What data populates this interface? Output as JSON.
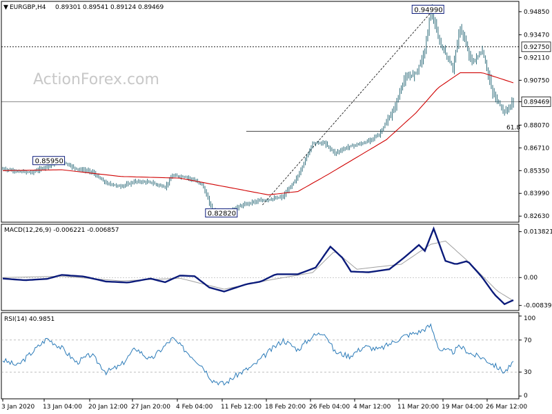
{
  "header": {
    "symbol": "EURGBP,H4",
    "open": "0.89301",
    "high": "0.89541",
    "low": "0.89124",
    "close": "0.89469",
    "watermark": "ActionForex.com"
  },
  "colors": {
    "candle": "#1a5e6e",
    "sma": "#d00000",
    "macd": "#0a1a7a",
    "signal": "#a0a0a0",
    "rsi": "#2a7ab8",
    "level": "#000000",
    "axis": "#000000",
    "label_border": "#0a1a7a"
  },
  "chart_data": [
    {
      "panel": "price",
      "type": "candlestick",
      "symbol": "EURGBP",
      "timeframe": "H4",
      "ohlc_last": {
        "open": 0.89301,
        "high": 0.89541,
        "low": 0.89124,
        "close": 0.89469
      },
      "ylim": [
        0.8235,
        0.953
      ],
      "y_ticks": [
        "0.94850",
        "0.93470",
        "0.92110",
        "0.90750",
        "0.89469",
        "0.88070",
        "0.86710",
        "0.85350",
        "0.83990",
        "0.82630"
      ],
      "x_ticks": [
        "3 Jan 2020",
        "13 Jan 04:00",
        "20 Jan 12:00",
        "27 Jan 20:00",
        "4 Feb 04:00",
        "11 Feb 12:00",
        "18 Feb 20:00",
        "26 Feb 04:00",
        "4 Mar 12:00",
        "11 Mar 20:00",
        "19 Mar 04:00",
        "26 Mar 12:00"
      ],
      "price_path": [
        [
          0,
          0.8545
        ],
        [
          10,
          0.853
        ],
        [
          20,
          0.8525
        ],
        [
          30,
          0.856
        ],
        [
          40,
          0.859
        ],
        [
          50,
          0.8545
        ],
        [
          60,
          0.853
        ],
        [
          70,
          0.846
        ],
        [
          80,
          0.844
        ],
        [
          90,
          0.847
        ],
        [
          100,
          0.8465
        ],
        [
          110,
          0.8435
        ],
        [
          115,
          0.8505
        ],
        [
          125,
          0.8495
        ],
        [
          135,
          0.8455
        ],
        [
          142,
          0.83
        ],
        [
          150,
          0.8282
        ],
        [
          160,
          0.832
        ],
        [
          170,
          0.835
        ],
        [
          180,
          0.836
        ],
        [
          190,
          0.838
        ],
        [
          200,
          0.85
        ],
        [
          210,
          0.87
        ],
        [
          218,
          0.87
        ],
        [
          225,
          0.864
        ],
        [
          235,
          0.868
        ],
        [
          245,
          0.87
        ],
        [
          255,
          0.875
        ],
        [
          265,
          0.89
        ],
        [
          272,
          0.908
        ],
        [
          280,
          0.912
        ],
        [
          286,
          0.925
        ],
        [
          290,
          0.9499
        ],
        [
          296,
          0.93
        ],
        [
          305,
          0.915
        ],
        [
          310,
          0.939
        ],
        [
          318,
          0.918
        ],
        [
          325,
          0.925
        ],
        [
          332,
          0.9
        ],
        [
          340,
          0.888
        ],
        [
          346,
          0.8947
        ]
      ],
      "sma_path": [
        [
          0,
          0.8535
        ],
        [
          40,
          0.854
        ],
        [
          80,
          0.85
        ],
        [
          120,
          0.849
        ],
        [
          150,
          0.844
        ],
        [
          180,
          0.839
        ],
        [
          200,
          0.841
        ],
        [
          220,
          0.851
        ],
        [
          260,
          0.872
        ],
        [
          280,
          0.888
        ],
        [
          295,
          0.903
        ],
        [
          310,
          0.912
        ],
        [
          325,
          0.912
        ],
        [
          346,
          0.906
        ]
      ],
      "levels": [
        {
          "value": 0.9275,
          "style": "dotted",
          "label": "0.92750"
        },
        {
          "value": 0.89469,
          "style": "solid",
          "label": "0.89469"
        }
      ],
      "fib_level": {
        "value": 0.877,
        "label": "61.8"
      },
      "annotations": [
        {
          "text": "0.85950",
          "value": 0.8595,
          "bar": 33
        },
        {
          "text": "0.82820",
          "value": 0.8282,
          "bar": 150
        },
        {
          "text": "0.94990",
          "value": 0.9499,
          "bar": 290
        }
      ],
      "trendline": {
        "from": [
          176,
          0.833
        ],
        "to": [
          292,
          0.9499
        ]
      }
    },
    {
      "panel": "macd",
      "type": "line",
      "title": "MACD(12,26,9) -0.006221 -0.006857",
      "ylim": [
        -0.0095,
        0.015
      ],
      "y_ticks": [
        "0.013821",
        "0.00",
        "-0.008397"
      ],
      "macd_path": [
        [
          0,
          -0.0003
        ],
        [
          15,
          -0.0008
        ],
        [
          30,
          -0.0004
        ],
        [
          40,
          0.0008
        ],
        [
          55,
          0.0003
        ],
        [
          70,
          -0.0012
        ],
        [
          85,
          -0.0015
        ],
        [
          100,
          -0.0003
        ],
        [
          110,
          -0.0014
        ],
        [
          120,
          0.0006
        ],
        [
          130,
          0.0004
        ],
        [
          140,
          -0.003
        ],
        [
          150,
          -0.0042
        ],
        [
          165,
          -0.002
        ],
        [
          175,
          -0.0012
        ],
        [
          185,
          0.001
        ],
        [
          200,
          0.001
        ],
        [
          212,
          0.003
        ],
        [
          222,
          0.0093
        ],
        [
          230,
          0.006
        ],
        [
          236,
          0.0018
        ],
        [
          248,
          0.0016
        ],
        [
          262,
          0.0025
        ],
        [
          272,
          0.006
        ],
        [
          282,
          0.0098
        ],
        [
          286,
          0.008
        ],
        [
          292,
          0.0147
        ],
        [
          300,
          0.005
        ],
        [
          307,
          0.004
        ],
        [
          315,
          0.005
        ],
        [
          325,
          0.0
        ],
        [
          333,
          -0.005
        ],
        [
          340,
          -0.008
        ],
        [
          346,
          -0.0068
        ]
      ],
      "signal_path": [
        [
          0,
          0.0
        ],
        [
          40,
          0.0004
        ],
        [
          80,
          -0.001
        ],
        [
          120,
          -0.0002
        ],
        [
          150,
          -0.0035
        ],
        [
          180,
          -0.0008
        ],
        [
          210,
          0.0015
        ],
        [
          225,
          0.008
        ],
        [
          240,
          0.0025
        ],
        [
          270,
          0.004
        ],
        [
          290,
          0.01
        ],
        [
          300,
          0.011
        ],
        [
          315,
          0.005
        ],
        [
          335,
          -0.004
        ],
        [
          346,
          -0.007
        ]
      ]
    },
    {
      "panel": "rsi",
      "type": "line",
      "title": "RSI(14) 40.9851",
      "ylim": [
        0,
        100
      ],
      "y_ticks": [
        "100",
        "70",
        "30",
        "0"
      ],
      "levels": [
        70,
        30
      ],
      "rsi_path": [
        [
          0,
          45
        ],
        [
          10,
          38
        ],
        [
          20,
          55
        ],
        [
          30,
          72
        ],
        [
          40,
          60
        ],
        [
          50,
          42
        ],
        [
          60,
          52
        ],
        [
          70,
          30
        ],
        [
          80,
          38
        ],
        [
          90,
          60
        ],
        [
          100,
          45
        ],
        [
          115,
          72
        ],
        [
          125,
          55
        ],
        [
          135,
          38
        ],
        [
          142,
          20
        ],
        [
          150,
          15
        ],
        [
          160,
          28
        ],
        [
          170,
          38
        ],
        [
          180,
          55
        ],
        [
          190,
          70
        ],
        [
          200,
          58
        ],
        [
          210,
          75
        ],
        [
          218,
          80
        ],
        [
          225,
          55
        ],
        [
          235,
          50
        ],
        [
          245,
          62
        ],
        [
          255,
          58
        ],
        [
          265,
          68
        ],
        [
          272,
          75
        ],
        [
          282,
          80
        ],
        [
          290,
          88
        ],
        [
          296,
          58
        ],
        [
          305,
          55
        ],
        [
          310,
          62
        ],
        [
          318,
          52
        ],
        [
          325,
          48
        ],
        [
          332,
          40
        ],
        [
          340,
          30
        ],
        [
          346,
          41
        ]
      ]
    }
  ]
}
